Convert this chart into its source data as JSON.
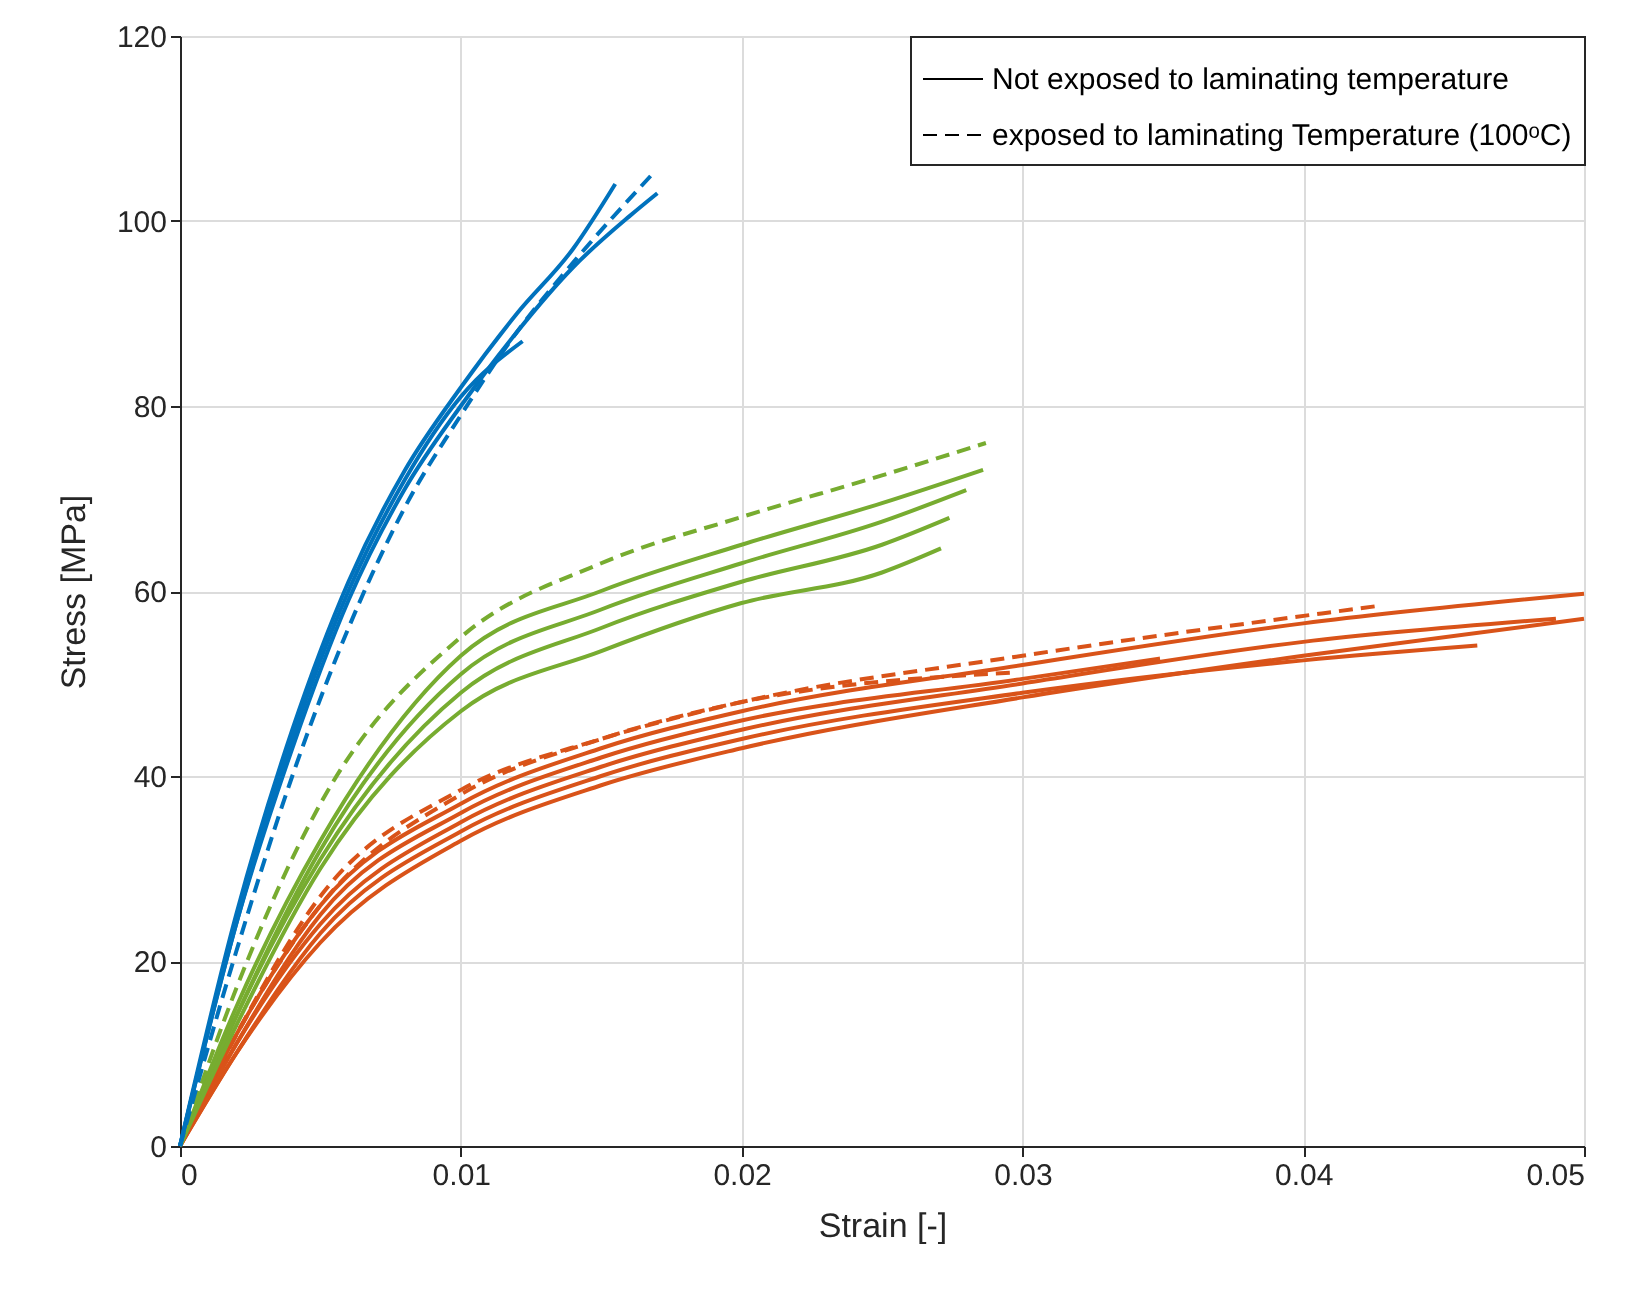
{
  "chart_data": {
    "type": "line",
    "xlabel": "Strain [-]",
    "ylabel": "Stress [MPa]",
    "xlim": [
      0,
      0.05
    ],
    "ylim": [
      0,
      120
    ],
    "xticks": [
      0,
      0.01,
      0.02,
      0.03,
      0.04,
      0.05
    ],
    "yticks": [
      0,
      20,
      40,
      60,
      80,
      100,
      120
    ],
    "grid": true,
    "marker": "none",
    "annotations": [
      "Not exposed to laminating temperature",
      "exposed to laminating Temperature (100ᵒC)"
    ],
    "series": [
      {
        "color": "#d95319",
        "line_style": "solid",
        "x": [
          0,
          0.002,
          0.005,
          0.01,
          0.015,
          0.02,
          0.03,
          0.04,
          0.05
        ],
        "values": [
          0,
          12,
          26,
          37,
          43,
          47,
          52,
          56.5,
          59.7
        ]
      },
      {
        "color": "#d95319",
        "line_style": "solid",
        "x": [
          0,
          0.002,
          0.005,
          0.01,
          0.015,
          0.02,
          0.03,
          0.04,
          0.049
        ],
        "values": [
          0,
          11,
          24,
          35,
          41,
          45,
          50,
          54.5,
          57
        ]
      },
      {
        "color": "#d95319",
        "line_style": "solid",
        "x": [
          0,
          0.002,
          0.005,
          0.01,
          0.015,
          0.02,
          0.03,
          0.04,
          0.05
        ],
        "values": [
          0,
          10,
          22,
          33,
          39,
          43,
          48.5,
          53,
          57
        ]
      },
      {
        "color": "#d95319",
        "line_style": "solid",
        "x": [
          0,
          0.002,
          0.005,
          0.01,
          0.015,
          0.02,
          0.03,
          0.04,
          0.0462
        ],
        "values": [
          0,
          10,
          23,
          34,
          40,
          44,
          49,
          52.5,
          54.1
        ]
      },
      {
        "color": "#d95319",
        "line_style": "solid",
        "x": [
          0,
          0.002,
          0.005,
          0.01,
          0.015,
          0.02,
          0.03,
          0.0349
        ],
        "values": [
          0,
          11,
          25,
          36,
          42,
          46,
          50.5,
          52.7
        ]
      },
      {
        "color": "#d95319",
        "line_style": "dashed",
        "x": [
          0,
          0.002,
          0.005,
          0.01,
          0.015,
          0.02,
          0.03,
          0.0427
        ],
        "values": [
          0,
          12,
          27,
          38.5,
          44,
          48,
          53,
          58.4
        ]
      },
      {
        "color": "#d95319",
        "line_style": "dashed",
        "x": [
          0,
          0.002,
          0.005,
          0.01,
          0.015,
          0.02,
          0.0297
        ],
        "values": [
          0,
          12,
          26,
          38,
          44,
          48,
          51.2
        ]
      },
      {
        "color": "#77ac30",
        "line_style": "solid",
        "x": [
          0,
          0.002,
          0.005,
          0.01,
          0.015,
          0.02,
          0.025,
          0.0286
        ],
        "values": [
          0,
          15,
          33,
          53,
          60,
          65,
          69.5,
          73.1
        ]
      },
      {
        "color": "#77ac30",
        "line_style": "solid",
        "x": [
          0,
          0.002,
          0.005,
          0.01,
          0.015,
          0.02,
          0.025,
          0.028
        ],
        "values": [
          0,
          14,
          32,
          51,
          58,
          63,
          67.5,
          70.9
        ]
      },
      {
        "color": "#77ac30",
        "line_style": "solid",
        "x": [
          0,
          0.002,
          0.005,
          0.01,
          0.015,
          0.02,
          0.025,
          0.0274
        ],
        "values": [
          0,
          14,
          31,
          49,
          56,
          61,
          65,
          67.9
        ]
      },
      {
        "color": "#77ac30",
        "line_style": "solid",
        "x": [
          0,
          0.002,
          0.005,
          0.01,
          0.015,
          0.02,
          0.025,
          0.0271
        ],
        "values": [
          0,
          13,
          30,
          47,
          53.5,
          58.7,
          62,
          64.6
        ]
      },
      {
        "color": "#77ac30",
        "line_style": "dashed",
        "x": [
          0,
          0.002,
          0.005,
          0.01,
          0.015,
          0.02,
          0.025,
          0.0287
        ],
        "values": [
          0,
          17,
          37,
          55,
          63,
          68,
          72.5,
          76
        ]
      },
      {
        "color": "#0072bd",
        "line_style": "solid",
        "x": [
          0,
          0.002,
          0.004,
          0.006,
          0.008,
          0.01,
          0.012,
          0.014,
          0.0155
        ],
        "values": [
          0,
          25,
          45,
          61,
          73,
          82,
          90,
          97,
          104
        ]
      },
      {
        "color": "#0072bd",
        "line_style": "solid",
        "x": [
          0,
          0.002,
          0.004,
          0.006,
          0.008,
          0.01,
          0.012,
          0.014,
          0.016,
          0.017
        ],
        "values": [
          0,
          24,
          43,
          59,
          71,
          80,
          88,
          95,
          100.5,
          103
        ]
      },
      {
        "color": "#0072bd",
        "line_style": "solid",
        "x": [
          0,
          0.002,
          0.004,
          0.006,
          0.008,
          0.01,
          0.0122
        ],
        "values": [
          0,
          24,
          44,
          60,
          72,
          81,
          87
        ]
      },
      {
        "color": "#0072bd",
        "line_style": "dashed",
        "x": [
          0,
          0.002,
          0.004,
          0.006,
          0.008,
          0.01,
          0.012,
          0.014,
          0.0168
        ],
        "values": [
          0,
          21,
          40,
          56,
          69,
          79,
          88,
          95.5,
          105
        ]
      }
    ]
  }
}
